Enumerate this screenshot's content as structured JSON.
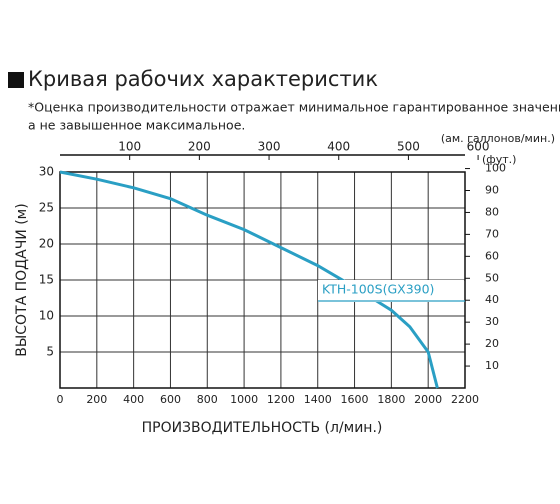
{
  "chart_data": {
    "type": "line",
    "title": "Кривая рабочих характеристик",
    "subtitle": [
      "*Оценка производительности отражает минимальное гарантированное значение,",
      "а не завышенное максимальное."
    ],
    "x_label": "ПРОИЗВОДИТЕЛЬНОСТЬ (л/мин.)",
    "y_label": "ВЫСОТА ПОДАЧИ (м)",
    "x2_label": "(ам. галлонов/мин.)",
    "y2_label": "(фут.)",
    "x": [
      0,
      200,
      400,
      600,
      800,
      1000,
      1200,
      1400,
      1600,
      1800,
      1900,
      2000,
      2050
    ],
    "series": [
      {
        "name": "KTH-100S(GX390)",
        "color": "#2a9fc4",
        "values": [
          30,
          29,
          27.8,
          26.3,
          24,
          22,
          19.5,
          17,
          14,
          10.8,
          8.5,
          5,
          0
        ]
      }
    ],
    "xlim": [
      0,
      2200
    ],
    "xticks": [
      0,
      200,
      400,
      600,
      800,
      1000,
      1200,
      1400,
      1600,
      1800,
      2000,
      2200
    ],
    "ylim": [
      0,
      30
    ],
    "yticks": [
      5,
      10,
      15,
      20,
      25,
      30
    ],
    "x2lim": [
      0,
      581.2
    ],
    "x2ticks": [
      100,
      200,
      300,
      400,
      500,
      600
    ],
    "y2lim": [
      0,
      98.43
    ],
    "y2ticks": [
      10,
      20,
      30,
      40,
      50,
      60,
      70,
      80,
      90,
      100
    ],
    "grid": true
  }
}
